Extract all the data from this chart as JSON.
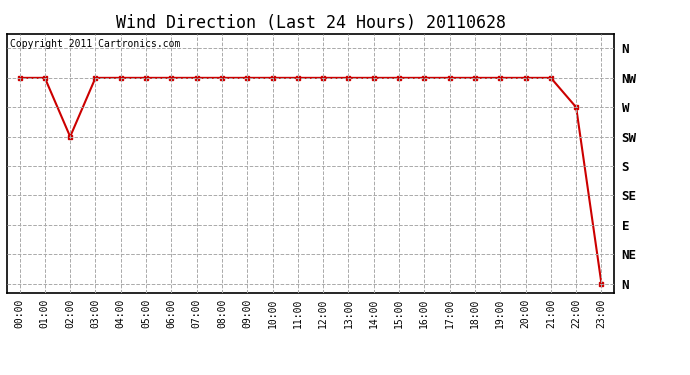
{
  "title": "Wind Direction (Last 24 Hours) 20110628",
  "copyright_text": "Copyright 2011 Cartronics.com",
  "x_labels": [
    "00:00",
    "01:00",
    "02:00",
    "03:00",
    "04:00",
    "05:00",
    "06:00",
    "07:00",
    "08:00",
    "09:00",
    "10:00",
    "11:00",
    "12:00",
    "13:00",
    "14:00",
    "15:00",
    "16:00",
    "17:00",
    "18:00",
    "19:00",
    "20:00",
    "21:00",
    "22:00",
    "23:00"
  ],
  "y_tick_labels": [
    "N",
    "NW",
    "W",
    "SW",
    "S",
    "SE",
    "E",
    "NE",
    "N"
  ],
  "y_tick_values": [
    8,
    7,
    6,
    5,
    4,
    3,
    2,
    1,
    0
  ],
  "data_x": [
    0,
    1,
    2,
    3,
    4,
    5,
    6,
    7,
    8,
    9,
    10,
    11,
    12,
    13,
    14,
    15,
    16,
    17,
    18,
    19,
    20,
    21,
    22,
    23
  ],
  "data_y": [
    7,
    7,
    5,
    7,
    7,
    7,
    7,
    7,
    7,
    7,
    7,
    7,
    7,
    7,
    7,
    7,
    7,
    7,
    7,
    7,
    7,
    7,
    6,
    0
  ],
  "line_color": "#cc0000",
  "marker": "s",
  "marker_size": 3,
  "bg_color": "#ffffff",
  "grid_color": "#aaaaaa",
  "title_fontsize": 12,
  "copyright_fontsize": 7,
  "axis_label_fontsize": 7,
  "y_axis_label_fontsize": 9
}
